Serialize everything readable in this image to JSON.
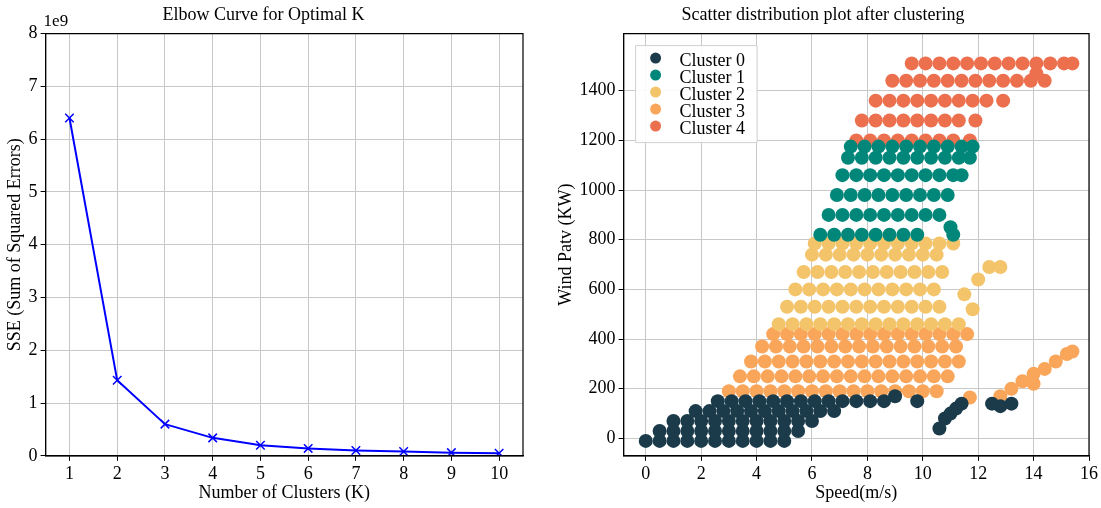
{
  "chart_data": [
    {
      "type": "line",
      "title": "Elbow Curve for Optimal K",
      "xlabel": "Number of Clusters (K)",
      "ylabel": "SSE (Sum of Squared Errors)",
      "categories": [
        "1",
        "2",
        "3",
        "4",
        "5",
        "6",
        "7",
        "8",
        "9",
        "10"
      ],
      "series": [
        {
          "color": "#0000ff",
          "values": [
            6.4,
            1.43,
            0.6,
            0.34,
            0.2,
            0.14,
            0.1,
            0.08,
            0.06,
            0.05
          ]
        }
      ],
      "marker": "cross",
      "ylim": [
        0,
        8
      ],
      "yticks": [
        0,
        1,
        2,
        3,
        4,
        5,
        6,
        7,
        8
      ],
      "grid": true,
      "annotations": [
        "1e9"
      ]
    },
    {
      "type": "scatter",
      "title": "Scatter distribution plot after clustering",
      "xlabel": "Speed(m/s)",
      "ylabel": "Wind Patv (KW)",
      "series": [
        {
          "name": "Cluster 0",
          "color": "#1b3b4b",
          "x": [
            0,
            0.5,
            1,
            1.5,
            2,
            2.5,
            3,
            3.5,
            4,
            4.5,
            5,
            0.5,
            1,
            1.5,
            2,
            2.5,
            3,
            3.5,
            4,
            4.5,
            5,
            5.5,
            1,
            1.5,
            2,
            2.5,
            3,
            3.5,
            4,
            4.5,
            5,
            5.5,
            6,
            1.8,
            2.3,
            2.8,
            3.3,
            3.8,
            4.3,
            4.8,
            5.3,
            5.8,
            6.3,
            6.8,
            2.6,
            3.1,
            3.6,
            4.1,
            4.6,
            5.1,
            5.6,
            6.1,
            6.6,
            7.1,
            7.6,
            8.1,
            8.6,
            9,
            9.8,
            10.6,
            10.8,
            11,
            11.2,
            11.4,
            12.5,
            12.8,
            13.2
          ],
          "values": [
            -10,
            -10,
            -10,
            -10,
            -10,
            -10,
            -10,
            -10,
            -10,
            -10,
            -10,
            30,
            30,
            30,
            30,
            30,
            30,
            30,
            30,
            30,
            30,
            30,
            70,
            70,
            70,
            70,
            70,
            70,
            70,
            70,
            70,
            70,
            70,
            110,
            110,
            110,
            110,
            110,
            110,
            110,
            110,
            110,
            110,
            110,
            150,
            150,
            150,
            150,
            150,
            150,
            150,
            150,
            150,
            150,
            150,
            150,
            150,
            170,
            150,
            40,
            80,
            100,
            120,
            140,
            140,
            130,
            140
          ]
        },
        {
          "name": "Cluster 1",
          "color": "#01877a",
          "x": [
            6.3,
            6.8,
            7.3,
            7.8,
            8.3,
            8.8,
            9.3,
            9.8,
            11.1,
            6.6,
            7.1,
            7.6,
            8.1,
            8.6,
            9.1,
            9.6,
            10.1,
            10.6,
            6.9,
            7.4,
            7.9,
            8.4,
            8.9,
            9.4,
            9.9,
            10.4,
            10.9,
            7.1,
            7.6,
            8.1,
            8.6,
            9.1,
            9.6,
            10.1,
            10.6,
            11.1,
            11.4,
            7.3,
            7.8,
            8.3,
            8.8,
            9.3,
            9.8,
            10.3,
            10.8,
            11.3,
            11.7,
            7.4,
            7.9,
            8.4,
            8.9,
            9.4,
            9.9,
            10.4,
            10.9,
            11.4,
            11.8,
            11
          ],
          "values": [
            820,
            820,
            820,
            820,
            820,
            820,
            820,
            820,
            820,
            900,
            900,
            900,
            900,
            900,
            900,
            900,
            900,
            900,
            980,
            980,
            980,
            980,
            980,
            980,
            980,
            980,
            980,
            1060,
            1060,
            1060,
            1060,
            1060,
            1060,
            1060,
            1060,
            1060,
            1060,
            1130,
            1130,
            1130,
            1130,
            1130,
            1130,
            1130,
            1130,
            1130,
            1130,
            1175,
            1175,
            1175,
            1175,
            1175,
            1175,
            1175,
            1175,
            1175,
            1175,
            850
          ]
        },
        {
          "name": "Cluster 2",
          "color": "#f3c46a",
          "x": [
            4.8,
            5.3,
            5.8,
            6.3,
            6.8,
            7.3,
            7.8,
            8.3,
            8.8,
            9.3,
            9.8,
            10.3,
            10.8,
            11.3,
            5.1,
            5.6,
            6.1,
            6.6,
            7.1,
            7.6,
            8.1,
            8.6,
            9.1,
            9.6,
            10.1,
            10.6,
            5.4,
            5.9,
            6.4,
            6.9,
            7.4,
            7.9,
            8.4,
            8.9,
            9.4,
            9.9,
            10.4,
            5.7,
            6.2,
            6.7,
            7.2,
            7.7,
            8.2,
            8.7,
            9.2,
            9.7,
            10.2,
            10.7,
            6,
            6.5,
            7,
            7.5,
            8,
            8.5,
            9,
            9.5,
            10,
            10.5,
            6.1,
            6.6,
            7.1,
            7.6,
            8.1,
            8.6,
            9.1,
            9.6,
            10.1,
            10.6,
            11.1,
            11.8,
            11.5,
            12,
            12.4,
            12.8
          ],
          "values": [
            460,
            460,
            460,
            460,
            460,
            460,
            460,
            460,
            460,
            460,
            460,
            460,
            460,
            460,
            530,
            530,
            530,
            530,
            530,
            530,
            530,
            530,
            530,
            530,
            530,
            530,
            600,
            600,
            600,
            600,
            600,
            600,
            600,
            600,
            600,
            600,
            600,
            670,
            670,
            670,
            670,
            670,
            670,
            670,
            670,
            670,
            670,
            670,
            740,
            740,
            740,
            740,
            740,
            740,
            740,
            740,
            740,
            740,
            785,
            785,
            785,
            785,
            785,
            785,
            785,
            785,
            785,
            785,
            785,
            520,
            580,
            640,
            690,
            690
          ]
        },
        {
          "name": "Cluster 3",
          "color": "#f9a65a",
          "x": [
            3,
            3.5,
            4,
            4.5,
            5,
            5.5,
            6,
            6.5,
            7,
            7.5,
            8,
            8.5,
            9,
            9.5,
            10,
            10.5,
            3.4,
            3.9,
            4.4,
            4.9,
            5.4,
            5.9,
            6.4,
            6.9,
            7.4,
            7.9,
            8.4,
            8.9,
            9.4,
            9.9,
            10.4,
            10.9,
            3.8,
            4.3,
            4.8,
            5.3,
            5.8,
            6.3,
            6.8,
            7.3,
            7.8,
            8.3,
            8.8,
            9.3,
            9.8,
            10.3,
            10.8,
            11.3,
            4.2,
            4.7,
            5.2,
            5.7,
            6.2,
            6.7,
            7.2,
            7.7,
            8.2,
            8.7,
            9.2,
            9.7,
            10.2,
            10.7,
            11.2,
            4.6,
            5.1,
            5.6,
            6.1,
            6.6,
            7.1,
            7.6,
            8.1,
            8.6,
            9.1,
            9.6,
            10.1,
            10.6,
            11.1,
            11.6,
            11.7,
            12.8,
            13.2,
            13.6,
            14,
            14.4,
            14.8,
            15.2,
            15.4,
            14
          ],
          "values": [
            190,
            190,
            190,
            190,
            190,
            190,
            190,
            190,
            190,
            190,
            190,
            190,
            190,
            190,
            190,
            190,
            250,
            250,
            250,
            250,
            250,
            250,
            250,
            250,
            250,
            250,
            250,
            250,
            250,
            250,
            250,
            250,
            310,
            310,
            310,
            310,
            310,
            310,
            310,
            310,
            310,
            310,
            310,
            310,
            310,
            310,
            310,
            310,
            370,
            370,
            370,
            370,
            370,
            370,
            370,
            370,
            370,
            370,
            370,
            370,
            370,
            370,
            370,
            420,
            420,
            420,
            420,
            420,
            420,
            420,
            420,
            420,
            420,
            420,
            420,
            420,
            420,
            420,
            165,
            170,
            200,
            230,
            260,
            280,
            310,
            340,
            350,
            220
          ]
        },
        {
          "name": "Cluster 4",
          "color": "#ec6f4e",
          "x": [
            7.6,
            8.1,
            8.6,
            9.1,
            9.6,
            10.1,
            10.6,
            11.1,
            11.7,
            7.8,
            8.3,
            8.8,
            9.3,
            9.8,
            10.3,
            10.8,
            11.3,
            11.9,
            8.3,
            8.8,
            9.3,
            9.8,
            10.3,
            10.8,
            11.3,
            11.8,
            12.3,
            12.9,
            8.9,
            9.4,
            9.9,
            10.4,
            10.9,
            11.4,
            11.9,
            12.4,
            12.9,
            13.4,
            13.9,
            14.4,
            9.6,
            10.1,
            10.6,
            11.1,
            11.6,
            12.1,
            12.6,
            13.1,
            13.6,
            14.1,
            14.6,
            15.1,
            15.4,
            14.1
          ],
          "values": [
            1200,
            1200,
            1200,
            1200,
            1200,
            1200,
            1200,
            1200,
            1200,
            1280,
            1280,
            1280,
            1280,
            1280,
            1280,
            1280,
            1280,
            1280,
            1360,
            1360,
            1360,
            1360,
            1360,
            1360,
            1360,
            1360,
            1360,
            1360,
            1440,
            1440,
            1440,
            1440,
            1440,
            1440,
            1440,
            1440,
            1440,
            1440,
            1440,
            1440,
            1510,
            1510,
            1510,
            1510,
            1510,
            1510,
            1510,
            1510,
            1510,
            1510,
            1510,
            1510,
            1510,
            1470
          ]
        }
      ],
      "marker": "circle",
      "xlim": [
        -0.8,
        16
      ],
      "xticks": [
        0,
        2,
        4,
        6,
        8,
        10,
        12,
        14,
        16
      ],
      "ylim": [
        -70,
        1630
      ],
      "yticks": [
        0,
        200,
        400,
        600,
        800,
        1000,
        1200,
        1400
      ],
      "grid": true,
      "legend": "top left"
    }
  ]
}
